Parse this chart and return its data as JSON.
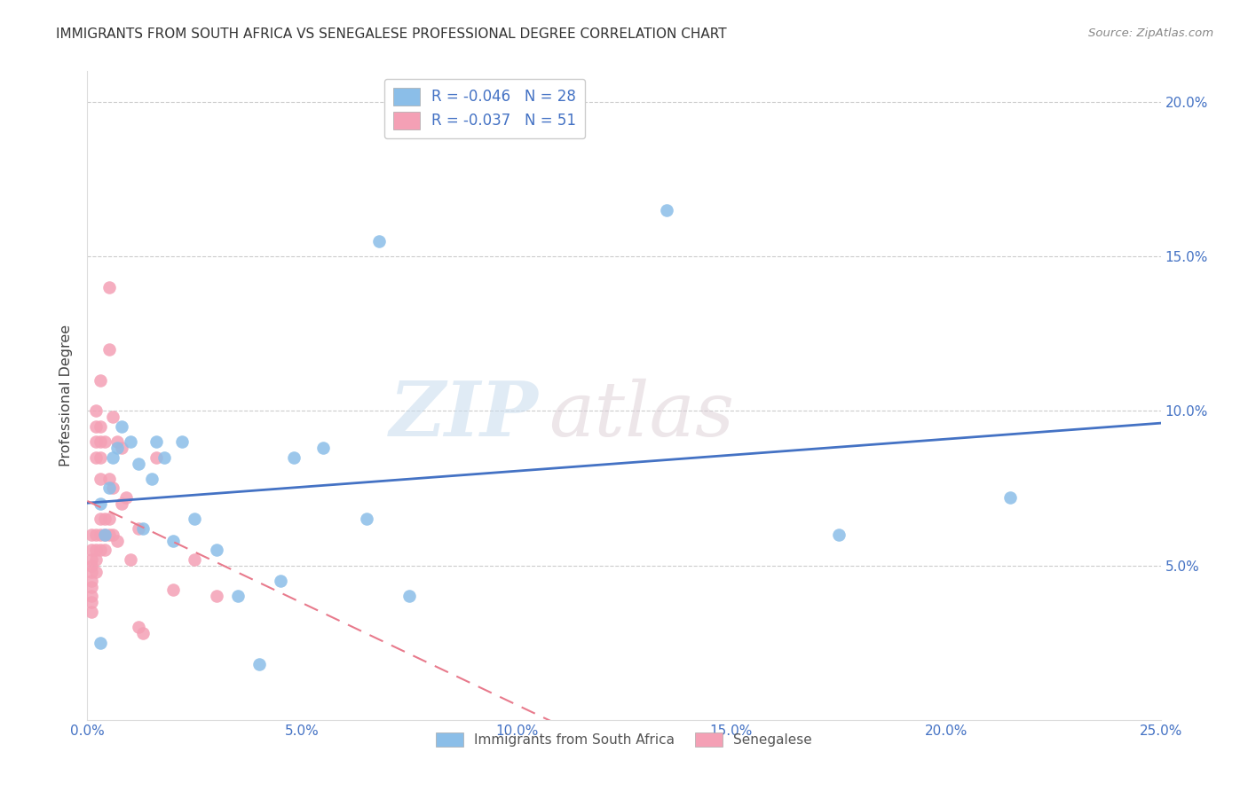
{
  "title": "IMMIGRANTS FROM SOUTH AFRICA VS SENEGALESE PROFESSIONAL DEGREE CORRELATION CHART",
  "source": "Source: ZipAtlas.com",
  "ylabel": "Professional Degree",
  "xlim": [
    0.0,
    0.25
  ],
  "ylim": [
    0.0,
    0.21
  ],
  "xticks": [
    0.0,
    0.05,
    0.1,
    0.15,
    0.2,
    0.25
  ],
  "yticks": [
    0.05,
    0.1,
    0.15,
    0.2
  ],
  "legend_r1": "R = -0.046",
  "legend_n1": "N = 28",
  "legend_r2": "R = -0.037",
  "legend_n2": "N = 51",
  "color_blue": "#8BBEE8",
  "color_pink": "#F4A0B5",
  "color_blue_line": "#4472C4",
  "color_pink_line": "#E87A8C",
  "color_axis_text": "#4472C4",
  "color_grid": "#CCCCCC",
  "blue_scatter_x": [
    0.003,
    0.003,
    0.004,
    0.005,
    0.006,
    0.007,
    0.008,
    0.01,
    0.012,
    0.013,
    0.015,
    0.016,
    0.018,
    0.02,
    0.022,
    0.025,
    0.03,
    0.035,
    0.04,
    0.045,
    0.048,
    0.055,
    0.065,
    0.068,
    0.075,
    0.135,
    0.175,
    0.215
  ],
  "blue_scatter_y": [
    0.025,
    0.07,
    0.06,
    0.075,
    0.085,
    0.088,
    0.095,
    0.09,
    0.083,
    0.062,
    0.078,
    0.09,
    0.085,
    0.058,
    0.09,
    0.065,
    0.055,
    0.04,
    0.018,
    0.045,
    0.085,
    0.088,
    0.065,
    0.155,
    0.04,
    0.165,
    0.06,
    0.072
  ],
  "pink_scatter_x": [
    0.001,
    0.001,
    0.001,
    0.001,
    0.001,
    0.001,
    0.001,
    0.001,
    0.001,
    0.001,
    0.002,
    0.002,
    0.002,
    0.002,
    0.002,
    0.002,
    0.002,
    0.002,
    0.003,
    0.003,
    0.003,
    0.003,
    0.003,
    0.003,
    0.003,
    0.003,
    0.004,
    0.004,
    0.004,
    0.004,
    0.005,
    0.005,
    0.005,
    0.005,
    0.005,
    0.006,
    0.006,
    0.006,
    0.007,
    0.007,
    0.008,
    0.008,
    0.009,
    0.01,
    0.012,
    0.012,
    0.013,
    0.016,
    0.02,
    0.025,
    0.03
  ],
  "pink_scatter_y": [
    0.06,
    0.055,
    0.052,
    0.05,
    0.048,
    0.045,
    0.043,
    0.04,
    0.038,
    0.035,
    0.1,
    0.095,
    0.09,
    0.085,
    0.06,
    0.055,
    0.052,
    0.048,
    0.11,
    0.095,
    0.09,
    0.085,
    0.078,
    0.065,
    0.06,
    0.055,
    0.09,
    0.065,
    0.06,
    0.055,
    0.14,
    0.12,
    0.078,
    0.065,
    0.06,
    0.098,
    0.075,
    0.06,
    0.09,
    0.058,
    0.088,
    0.07,
    0.072,
    0.052,
    0.062,
    0.03,
    0.028,
    0.085,
    0.042,
    0.052,
    0.04
  ],
  "watermark_zip": "ZIP",
  "watermark_atlas": "atlas",
  "background_color": "#FFFFFF"
}
